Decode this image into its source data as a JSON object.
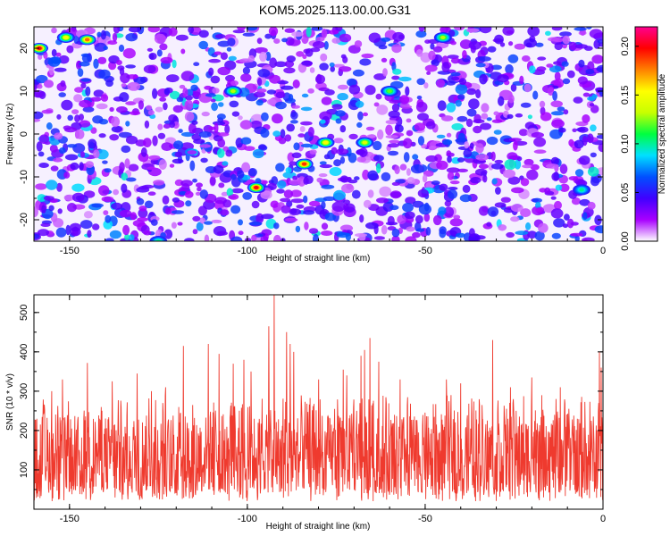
{
  "title": "KOM5.2025.113.00.00.G31",
  "chart_data": [
    {
      "type": "heatmap",
      "xlabel": "Height of straight line (km)",
      "ylabel": "Frequency (Hz)",
      "xlim": [
        -160,
        0
      ],
      "ylim": [
        -25,
        25
      ],
      "x_ticks": [
        "-150",
        "-100",
        "-50",
        "0"
      ],
      "y_ticks": [
        "20",
        "10",
        "0",
        "-10",
        "-20"
      ],
      "colorbar": {
        "label": "Normalized spectral amplitude",
        "range": [
          0.0,
          0.22
        ],
        "ticks": [
          "0.00",
          "0.05",
          "0.10",
          "0.15",
          "0.20"
        ],
        "colormap": [
          "#ffffff",
          "#a800ff",
          "#4000ff",
          "#0050ff",
          "#00e0ff",
          "#00ff40",
          "#c8ff00",
          "#ffff00",
          "#ff8000",
          "#ff0000",
          "#ff0090"
        ]
      },
      "hotspots": [
        {
          "x": -158.5,
          "y": 20,
          "value": 0.2
        },
        {
          "x": -145,
          "y": 22,
          "value": 0.18
        },
        {
          "x": -151,
          "y": 22.5,
          "value": 0.15
        },
        {
          "x": -97.5,
          "y": -12.5,
          "value": 0.2
        },
        {
          "x": -84,
          "y": -7,
          "value": 0.19
        },
        {
          "x": -78,
          "y": -2,
          "value": 0.15
        },
        {
          "x": -67,
          "y": -2,
          "value": 0.14
        },
        {
          "x": -104,
          "y": 10,
          "value": 0.13
        },
        {
          "x": -60,
          "y": 10,
          "value": 0.12
        },
        {
          "x": -45,
          "y": 22.5,
          "value": 0.13
        },
        {
          "x": -125,
          "y": -25,
          "value": 0.1
        },
        {
          "x": -6,
          "y": -13,
          "value": 0.1
        }
      ]
    },
    {
      "type": "line",
      "xlabel": "Height of straight line (km)",
      "ylabel": "SNR (10 * v/v)",
      "xlim": [
        -160,
        0
      ],
      "ylim": [
        0,
        545
      ],
      "x_ticks": [
        "-150",
        "-100",
        "-50",
        "0"
      ],
      "y_ticks": [
        "100",
        "200",
        "300",
        "400",
        "500"
      ],
      "color": "#ef3a2e",
      "baseline": {
        "low": 20,
        "high": 240
      },
      "peaks": [
        {
          "x": -92.5,
          "y": 545
        },
        {
          "x": -94,
          "y": 465
        },
        {
          "x": -89,
          "y": 450
        },
        {
          "x": -88,
          "y": 420
        },
        {
          "x": -87,
          "y": 400
        },
        {
          "x": -118,
          "y": 415
        },
        {
          "x": -111,
          "y": 420
        },
        {
          "x": -108,
          "y": 395
        },
        {
          "x": -104,
          "y": 370
        },
        {
          "x": -101,
          "y": 380
        },
        {
          "x": -99,
          "y": 350
        },
        {
          "x": -65.5,
          "y": 435
        },
        {
          "x": -67,
          "y": 405
        },
        {
          "x": -68,
          "y": 390
        },
        {
          "x": -63,
          "y": 375
        },
        {
          "x": -72,
          "y": 340
        },
        {
          "x": -80,
          "y": 330
        },
        {
          "x": -73,
          "y": 355
        },
        {
          "x": -31,
          "y": 430
        },
        {
          "x": -44,
          "y": 330
        },
        {
          "x": -40,
          "y": 320
        },
        {
          "x": -20,
          "y": 335
        },
        {
          "x": -12,
          "y": 310
        },
        {
          "x": -1,
          "y": 400
        },
        {
          "x": -0.5,
          "y": 360
        },
        {
          "x": -145,
          "y": 372
        },
        {
          "x": -152,
          "y": 330
        },
        {
          "x": -138,
          "y": 325
        },
        {
          "x": -131,
          "y": 345
        },
        {
          "x": -127,
          "y": 300
        },
        {
          "x": -155,
          "y": 300
        },
        {
          "x": -123,
          "y": 310
        },
        {
          "x": -57,
          "y": 330
        },
        {
          "x": -26,
          "y": 310
        }
      ]
    }
  ]
}
